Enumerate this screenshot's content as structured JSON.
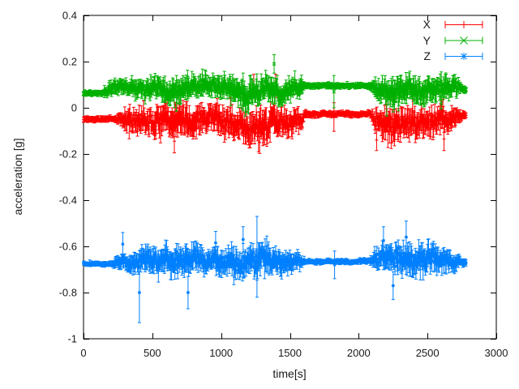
{
  "chart_data": {
    "type": "line",
    "plot_style": "errorbars-with-points",
    "title": "",
    "xlabel": "time[s]",
    "ylabel": "acceleration [g]",
    "xlim": [
      0,
      3000
    ],
    "ylim": [
      -1,
      0.4
    ],
    "xticks": [
      0,
      500,
      1000,
      1500,
      2000,
      2500,
      3000
    ],
    "yticks": [
      0.4,
      0.2,
      0,
      -0.2,
      -0.4,
      -0.6,
      -0.8,
      -1
    ],
    "grid": false,
    "legend_position": "top-right-inside",
    "background_color": "#ffffff",
    "border_color": "#000000",
    "sample_step_s": 4,
    "data_t_end": 2780,
    "series": [
      {
        "name": "X",
        "color": "#ff0000",
        "marker": "plus",
        "description": "X acceleration: flat at -0.05 g for t<230s, noisy band roughly -0.14..0.03 g until 1610s, quiet at -0.03 g from 1610-2080s, noisy again 2120-2745s, ends flat at -0.03 g",
        "envelope": [
          [
            0,
            -0.048,
            0.008
          ],
          [
            230,
            -0.048,
            0.009
          ],
          [
            290,
            -0.052,
            0.032
          ],
          [
            400,
            -0.055,
            0.042
          ],
          [
            520,
            -0.06,
            0.05
          ],
          [
            650,
            -0.065,
            0.06
          ],
          [
            780,
            -0.06,
            0.062
          ],
          [
            900,
            -0.052,
            0.045
          ],
          [
            1000,
            -0.055,
            0.05
          ],
          [
            1100,
            -0.06,
            0.058
          ],
          [
            1200,
            -0.07,
            0.065
          ],
          [
            1300,
            -0.068,
            0.065
          ],
          [
            1400,
            -0.06,
            0.058
          ],
          [
            1500,
            -0.05,
            0.045
          ],
          [
            1580,
            -0.045,
            0.035
          ],
          [
            1615,
            -0.027,
            0.009
          ],
          [
            2080,
            -0.027,
            0.009
          ],
          [
            2120,
            -0.05,
            0.042
          ],
          [
            2200,
            -0.06,
            0.058
          ],
          [
            2300,
            -0.062,
            0.06
          ],
          [
            2400,
            -0.058,
            0.055
          ],
          [
            2500,
            -0.052,
            0.05
          ],
          [
            2600,
            -0.05,
            0.048
          ],
          [
            2700,
            -0.045,
            0.04
          ],
          [
            2745,
            -0.032,
            0.014
          ],
          [
            2780,
            -0.03,
            0.01
          ]
        ],
        "outliers": [
          [
            660,
            -0.145,
            0.05
          ],
          [
            1237,
            0.095,
            0.05
          ],
          [
            1280,
            -0.15,
            0.048
          ],
          [
            1396,
            0.095,
            0.05
          ],
          [
            1820,
            -0.04,
            0.062
          ],
          [
            2130,
            -0.14,
            0.045
          ],
          [
            2620,
            -0.135,
            0.05
          ]
        ]
      },
      {
        "name": "Y",
        "color": "#00b000",
        "marker": "cross",
        "description": "Y acceleration: flat at 0.063 g for t<140s, noisy band roughly 0.03..0.14 g until 1610s, quiet at 0.095 g from 1610-2080s, noisy again 2120-2745s, ends flat at 0.08 g; spike to 0.23 g near t=1385s",
        "envelope": [
          [
            0,
            0.063,
            0.008
          ],
          [
            140,
            0.063,
            0.008
          ],
          [
            185,
            0.085,
            0.022
          ],
          [
            290,
            0.09,
            0.028
          ],
          [
            400,
            0.088,
            0.033
          ],
          [
            520,
            0.085,
            0.038
          ],
          [
            650,
            0.082,
            0.042
          ],
          [
            780,
            0.085,
            0.044
          ],
          [
            900,
            0.09,
            0.038
          ],
          [
            1000,
            0.085,
            0.04
          ],
          [
            1100,
            0.08,
            0.045
          ],
          [
            1200,
            0.075,
            0.05
          ],
          [
            1300,
            0.078,
            0.048
          ],
          [
            1400,
            0.08,
            0.046
          ],
          [
            1500,
            0.088,
            0.038
          ],
          [
            1580,
            0.092,
            0.03
          ],
          [
            1615,
            0.095,
            0.008
          ],
          [
            2080,
            0.095,
            0.008
          ],
          [
            2120,
            0.085,
            0.035
          ],
          [
            2200,
            0.078,
            0.05
          ],
          [
            2300,
            0.075,
            0.052
          ],
          [
            2400,
            0.08,
            0.048
          ],
          [
            2500,
            0.085,
            0.045
          ],
          [
            2600,
            0.088,
            0.042
          ],
          [
            2700,
            0.085,
            0.035
          ],
          [
            2745,
            0.08,
            0.013
          ],
          [
            2780,
            0.08,
            0.01
          ]
        ],
        "outliers": [
          [
            1385,
            0.19,
            0.04
          ],
          [
            1820,
            0.07,
            0.07
          ],
          [
            2250,
            0.01,
            0.028
          ],
          [
            2600,
            0.02,
            0.025
          ]
        ]
      },
      {
        "name": "Z",
        "color": "#0080ff",
        "marker": "star",
        "description": "Z acceleration: flat at -0.675 g for t<200s, noisy band roughly -0.77..-0.59 g until 1610s, quiet at -0.665 g from 1610-2080s, noisy again 2120-2745s, ends flat at -0.67 g; error bars to -0.93 g near t=406s and -0.47 g near t=1261s",
        "envelope": [
          [
            0,
            -0.675,
            0.006
          ],
          [
            200,
            -0.675,
            0.007
          ],
          [
            250,
            -0.67,
            0.02
          ],
          [
            320,
            -0.665,
            0.032
          ],
          [
            420,
            -0.662,
            0.04
          ],
          [
            520,
            -0.658,
            0.045
          ],
          [
            620,
            -0.652,
            0.05
          ],
          [
            720,
            -0.648,
            0.052
          ],
          [
            820,
            -0.65,
            0.048
          ],
          [
            920,
            -0.66,
            0.042
          ],
          [
            1020,
            -0.665,
            0.045
          ],
          [
            1120,
            -0.662,
            0.05
          ],
          [
            1220,
            -0.665,
            0.056
          ],
          [
            1320,
            -0.66,
            0.052
          ],
          [
            1420,
            -0.662,
            0.046
          ],
          [
            1520,
            -0.668,
            0.038
          ],
          [
            1570,
            -0.67,
            0.025
          ],
          [
            1615,
            -0.665,
            0.007
          ],
          [
            2080,
            -0.665,
            0.007
          ],
          [
            2120,
            -0.66,
            0.035
          ],
          [
            2200,
            -0.655,
            0.05
          ],
          [
            2300,
            -0.652,
            0.055
          ],
          [
            2400,
            -0.658,
            0.05
          ],
          [
            2500,
            -0.662,
            0.055
          ],
          [
            2600,
            -0.668,
            0.045
          ],
          [
            2700,
            -0.672,
            0.035
          ],
          [
            2745,
            -0.67,
            0.013
          ],
          [
            2780,
            -0.67,
            0.01
          ]
        ],
        "outliers": [
          [
            285,
            -0.59,
            0.05
          ],
          [
            406,
            -0.8,
            0.13
          ],
          [
            760,
            -0.8,
            0.07
          ],
          [
            960,
            -0.585,
            0.05
          ],
          [
            1160,
            -0.57,
            0.055
          ],
          [
            1261,
            -0.645,
            0.175
          ],
          [
            1825,
            -0.68,
            0.06
          ],
          [
            2180,
            -0.575,
            0.06
          ],
          [
            2250,
            -0.77,
            0.06
          ],
          [
            2345,
            -0.56,
            0.07
          ]
        ]
      }
    ]
  }
}
